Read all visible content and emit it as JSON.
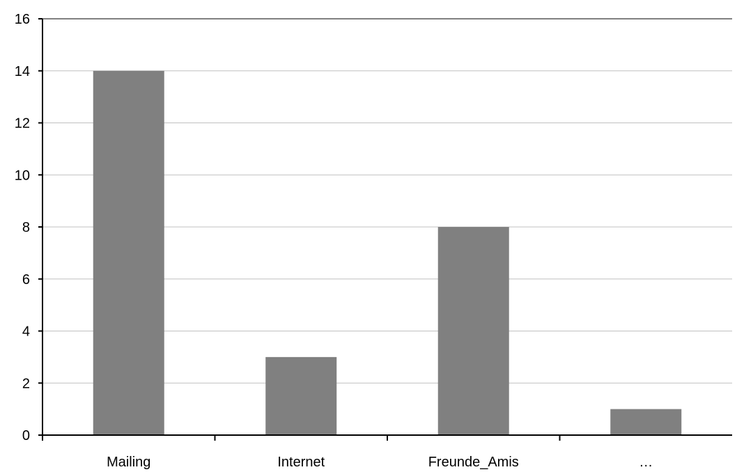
{
  "chart_data": {
    "type": "bar",
    "categories": [
      "Mailing",
      "Internet",
      "Freunde_Amis",
      "…"
    ],
    "values": [
      14,
      3,
      8,
      1
    ],
    "ylim": [
      0,
      16
    ],
    "yticks": [
      0,
      2,
      4,
      6,
      8,
      10,
      12,
      14,
      16
    ],
    "grid": true,
    "colors": {
      "bar": "#808080",
      "grid": "#c0c0c0",
      "axis": "#000000"
    }
  }
}
